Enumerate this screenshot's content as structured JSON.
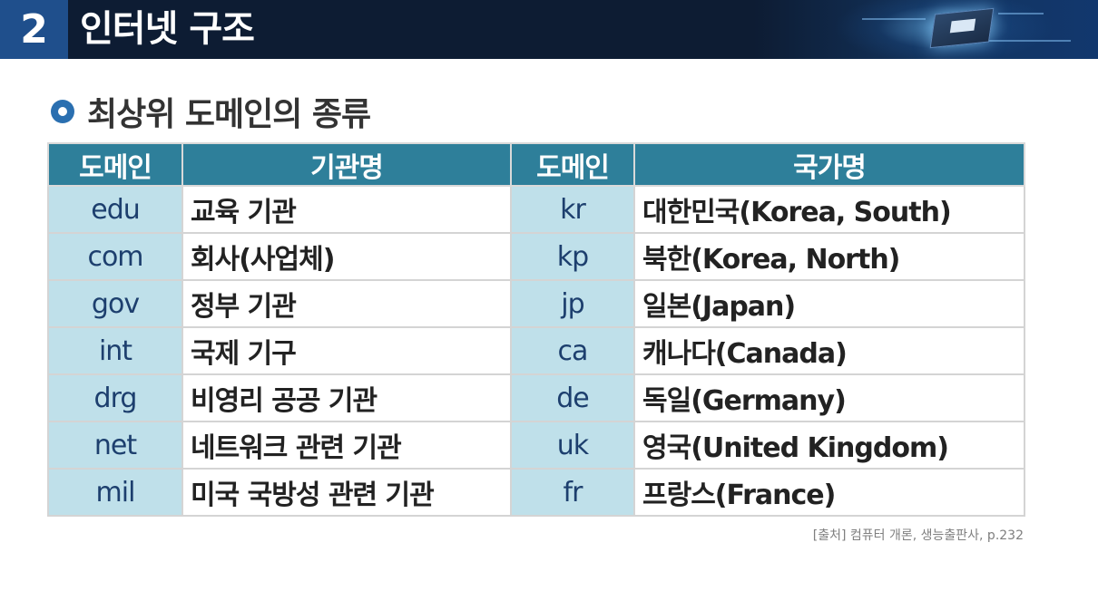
{
  "header": {
    "section_number": "2",
    "title": "인터넷 구조"
  },
  "subheading": "최상위 도메인의 종류",
  "table": {
    "headers": [
      "도메인",
      "기관명",
      "도메인",
      "국가명"
    ],
    "rows": [
      {
        "org_domain": "edu",
        "org_name": "교육 기관",
        "country_domain": "kr",
        "country_name": "대한민국(Korea, South)"
      },
      {
        "org_domain": "com",
        "org_name": "회사(사업체)",
        "country_domain": "kp",
        "country_name": "북한(Korea, North)"
      },
      {
        "org_domain": "gov",
        "org_name": "정부 기관",
        "country_domain": "jp",
        "country_name": "일본(Japan)"
      },
      {
        "org_domain": "int",
        "org_name": "국제 기구",
        "country_domain": "ca",
        "country_name": "캐나다(Canada)"
      },
      {
        "org_domain": "drg",
        "org_name": "비영리 공공 기관",
        "country_domain": "de",
        "country_name": "독일(Germany)"
      },
      {
        "org_domain": "net",
        "org_name": "네트워크 관련 기관",
        "country_domain": "uk",
        "country_name": "영국(United Kingdom)"
      },
      {
        "org_domain": "mil",
        "org_name": "미국 국방성 관련 기관",
        "country_domain": "fr",
        "country_name": "프랑스(France)"
      }
    ]
  },
  "source": "[출처] 컴퓨터 개론, 생능출판사, p.232",
  "colors": {
    "title_bar": "#0d1c33",
    "number_box": "#1f4f8c",
    "table_header": "#2e7f9a",
    "domain_cell": "#bfe0ea",
    "bullet": "#2a6fb0"
  }
}
